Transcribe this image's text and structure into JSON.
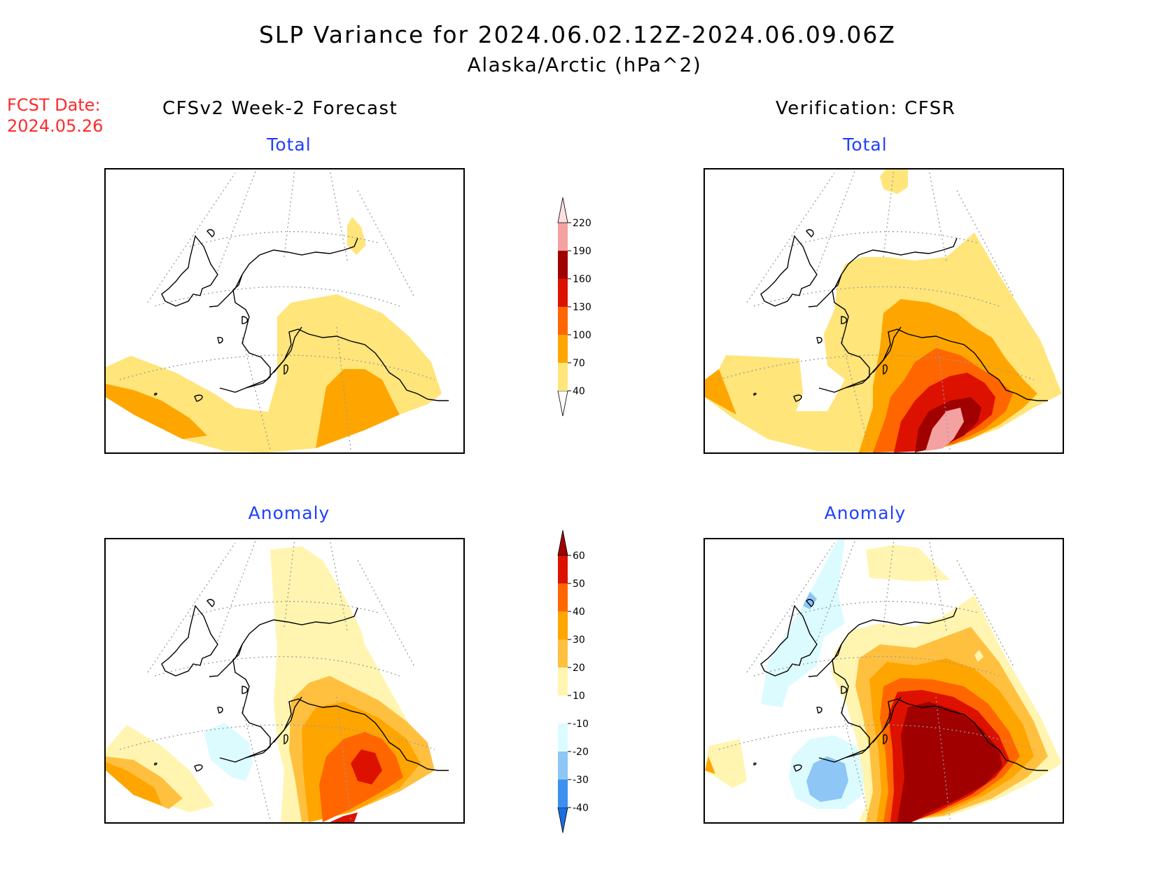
{
  "title": {
    "line1": "SLP Variance for 2024.06.02.12Z-2024.06.09.06Z",
    "line2": "Alaska/Arctic (hPa^2)"
  },
  "forecast_date": {
    "label": "FCST Date:",
    "value": "2024.05.26"
  },
  "columns": {
    "left": "CFSv2 Week-2 Forecast",
    "right": "Verification: CFSR"
  },
  "panels": {
    "top_left": "Total",
    "top_right": "Total",
    "bottom_left": "Anomaly",
    "bottom_right": "Anomaly"
  },
  "colorbars": {
    "total": {
      "labels": [
        "40",
        "70",
        "100",
        "130",
        "160",
        "190",
        "220"
      ],
      "colors": [
        "#ffffff",
        "#ffe57a",
        "#ffa500",
        "#ff6600",
        "#dd1100",
        "#a00000",
        "#f4a1a1",
        "#fde0e0"
      ]
    },
    "anomaly": {
      "labels": [
        "-40",
        "-30",
        "-20",
        "-10",
        "10",
        "20",
        "30",
        "40",
        "50",
        "60"
      ],
      "colors": [
        "#1a6fe0",
        "#3d8ff0",
        "#8ec6f5",
        "#dcfbff",
        "#ffffff",
        "#fff5b0",
        "#ffc040",
        "#ffa500",
        "#ff6600",
        "#dd1100",
        "#a00000"
      ]
    }
  }
}
